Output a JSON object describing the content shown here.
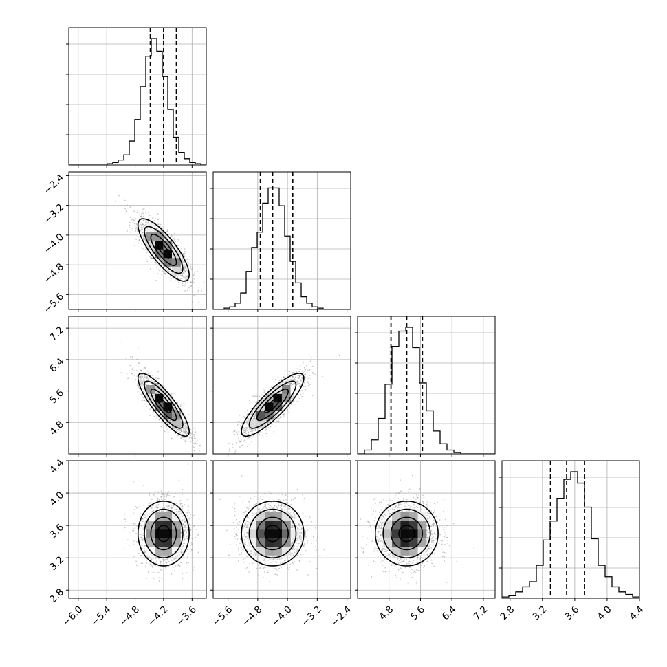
{
  "chart_data": {
    "type": "corner",
    "title": "",
    "grid": true,
    "n_parameters": 4,
    "parameters": [
      {
        "range": [
          -6.2,
          -3.3
        ],
        "median": -4.2,
        "q16": -4.48,
        "q84": -3.93,
        "std": 0.27,
        "ticks": [
          -6.0,
          -5.4,
          -4.8,
          -4.2,
          -3.6
        ],
        "tick_labels": [
          "−6.0",
          "−5.4",
          "−4.8",
          "−4.2",
          "−3.6"
        ]
      },
      {
        "range": [
          -6.0,
          -2.3
        ],
        "median": -4.4,
        "q16": -4.73,
        "q84": -3.86,
        "std": 0.42,
        "ticks": [
          -5.6,
          -4.8,
          -4.0,
          -3.2,
          -2.4
        ],
        "tick_labels": [
          "−5.6",
          "−4.8",
          "−4.0",
          "−3.2",
          "−2.4"
        ]
      },
      {
        "range": [
          4.0,
          7.5
        ],
        "median": 5.25,
        "q16": 4.85,
        "q84": 5.65,
        "std": 0.4,
        "ticks": [
          4.8,
          5.6,
          6.4,
          7.2
        ],
        "tick_labels": [
          "4.8",
          "5.6",
          "6.4",
          "7.2"
        ]
      },
      {
        "range": [
          2.7,
          4.4
        ],
        "median": 3.5,
        "q16": 3.3,
        "q84": 3.72,
        "std": 0.2,
        "ticks": [
          2.8,
          3.2,
          3.6,
          4.0,
          4.4
        ],
        "tick_labels": [
          "2.8",
          "3.2",
          "3.6",
          "4.0",
          "4.4"
        ]
      }
    ],
    "correlations": [
      {
        "pair": [
          0,
          1
        ],
        "r": -0.8
      },
      {
        "pair": [
          0,
          2
        ],
        "r": -0.85
      },
      {
        "pair": [
          1,
          2
        ],
        "r": 0.85
      },
      {
        "pair": [
          0,
          3
        ],
        "r": 0.0
      },
      {
        "pair": [
          1,
          3
        ],
        "r": 0.0
      },
      {
        "pair": [
          2,
          3
        ],
        "r": 0.0
      }
    ],
    "histograms": [
      [
        0,
        0,
        0,
        0,
        0,
        0,
        0,
        1,
        2,
        4,
        8,
        19,
        36,
        62,
        86,
        100,
        90,
        70,
        44,
        22,
        10,
        5,
        2,
        1,
        0
      ],
      [
        0,
        0,
        1,
        2,
        5,
        13,
        30,
        49,
        61,
        84,
        96,
        96,
        82,
        58,
        38,
        21,
        10,
        5,
        2,
        1,
        0,
        0,
        0,
        0,
        0
      ],
      [
        0,
        3,
        11,
        28,
        55,
        85,
        97,
        100,
        84,
        56,
        34,
        18,
        8,
        3,
        1,
        0,
        0,
        0,
        0,
        0
      ],
      [
        1,
        2,
        5,
        9,
        13,
        26,
        46,
        61,
        79,
        94,
        100,
        91,
        72,
        47,
        26,
        17,
        9,
        5,
        3,
        1
      ]
    ]
  }
}
